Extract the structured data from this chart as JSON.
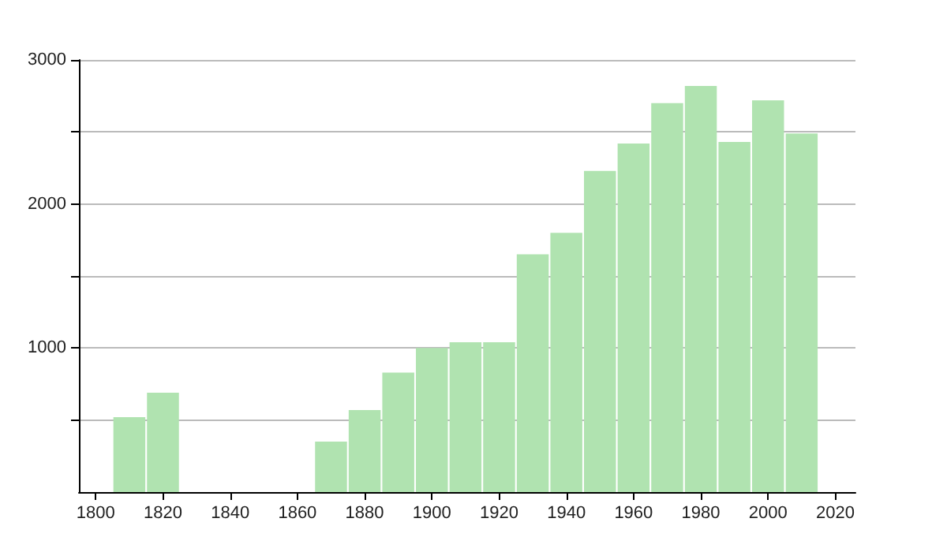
{
  "chart_data": {
    "type": "bar",
    "x": [
      1810,
      1820,
      1870,
      1880,
      1890,
      1900,
      1910,
      1920,
      1930,
      1940,
      1950,
      1960,
      1970,
      1980,
      1990,
      2000,
      2010
    ],
    "values": [
      520,
      690,
      350,
      570,
      830,
      1000,
      1040,
      1040,
      1650,
      1800,
      2230,
      2420,
      2700,
      2820,
      2430,
      2720,
      2490
    ],
    "color": "#b0e3b0",
    "xlim": [
      1795,
      2026
    ],
    "xticks": [
      1800,
      1820,
      1840,
      1860,
      1880,
      1900,
      1920,
      1940,
      1960,
      1980,
      2000,
      2020
    ],
    "ylim": [
      0,
      3000
    ],
    "yticks": [
      {
        "value": 500,
        "label": null
      },
      1000,
      {
        "value": 1500,
        "label": null
      },
      2000,
      {
        "value": 2500,
        "label": null
      },
      3000
    ],
    "grid": "y"
  }
}
